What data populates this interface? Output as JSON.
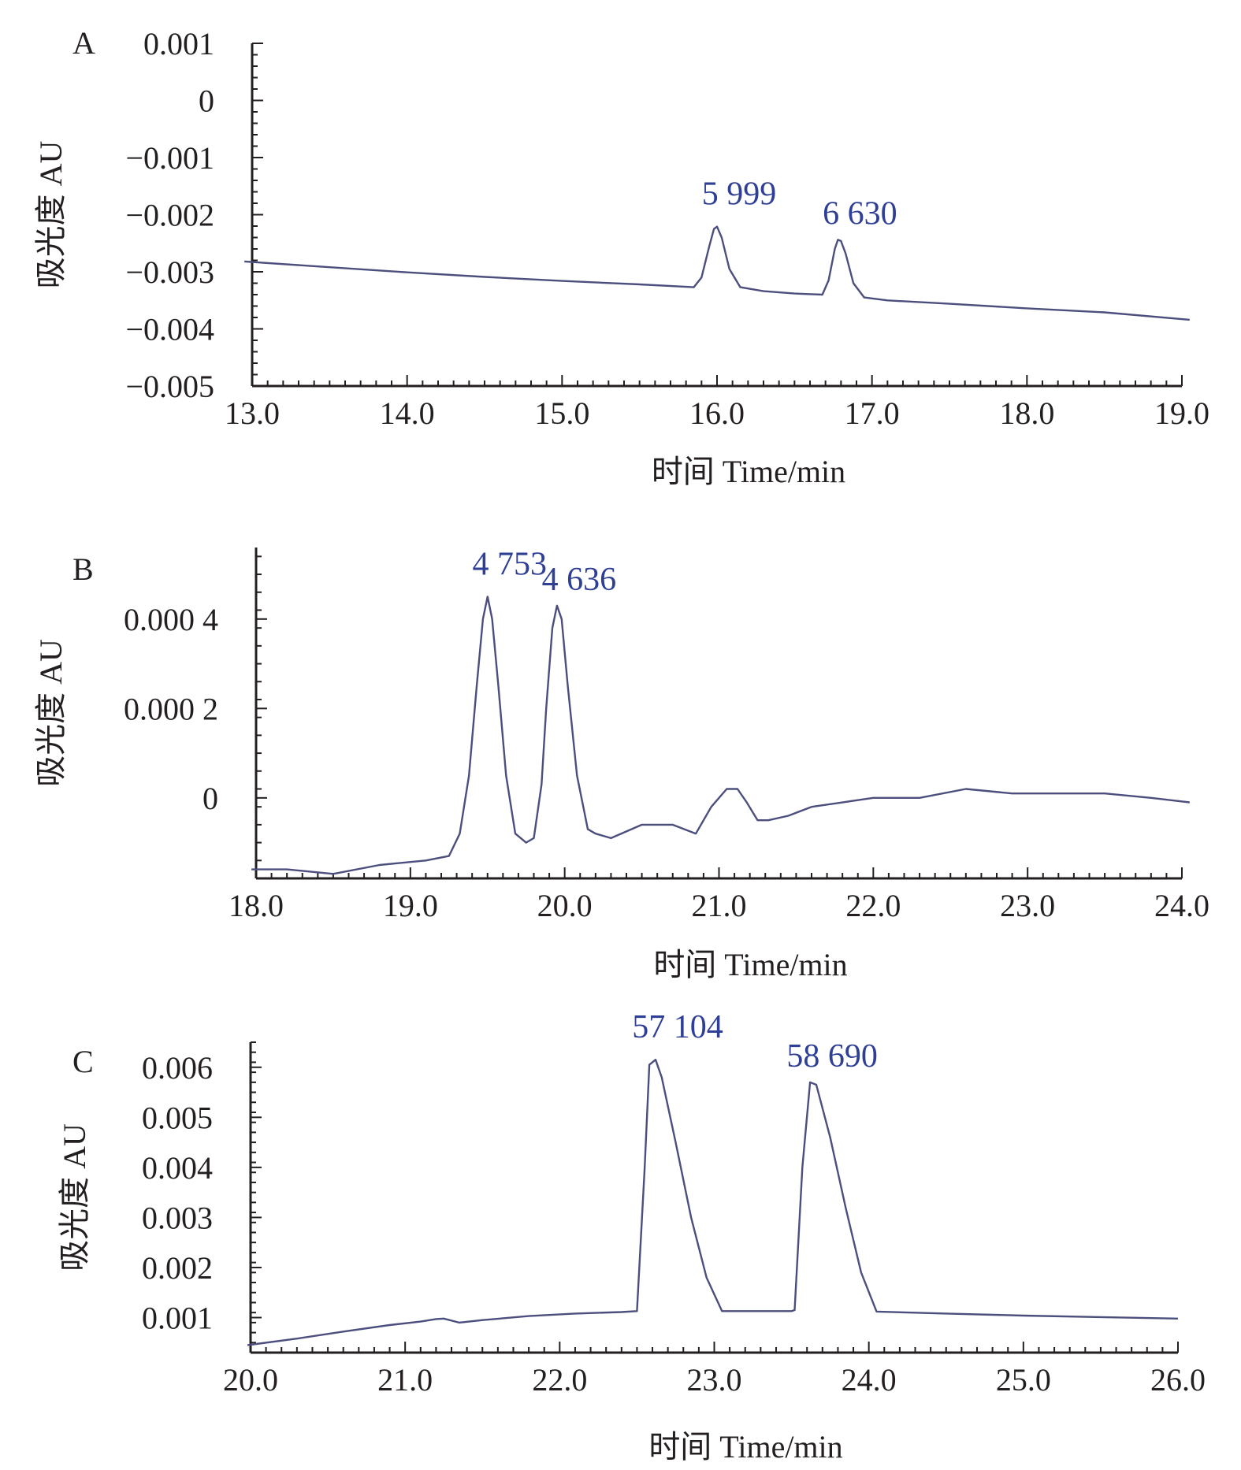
{
  "chart_data": [
    {
      "panel": "A",
      "type": "line",
      "xlabel": "时间 Time/min",
      "ylabel": "吸光度 AU",
      "xlim": [
        13.0,
        19.0
      ],
      "ylim": [
        -0.005,
        0.001
      ],
      "x_ticks": [
        "13.0",
        "14.0",
        "15.0",
        "16.0",
        "17.0",
        "18.0",
        "19.0"
      ],
      "y_ticks": [
        "0.001",
        "0",
        "−0.001",
        "−0.002",
        "−0.003",
        "−0.004",
        "−0.005"
      ],
      "series": [
        {
          "color": "#4c4f7e",
          "x": [
            12.95,
            13.5,
            14.0,
            14.5,
            15.0,
            15.5,
            15.85,
            15.9,
            15.95,
            15.98,
            16.0,
            16.03,
            16.08,
            16.15,
            16.3,
            16.5,
            16.68,
            16.72,
            16.76,
            16.78,
            16.8,
            16.83,
            16.88,
            16.95,
            17.1,
            17.5,
            18.0,
            18.5,
            19.05
          ],
          "y": [
            -0.00282,
            -0.00292,
            -0.00301,
            -0.00309,
            -0.00316,
            -0.00322,
            -0.00327,
            -0.0031,
            -0.00255,
            -0.00225,
            -0.00221,
            -0.0024,
            -0.00295,
            -0.00327,
            -0.00334,
            -0.00338,
            -0.0034,
            -0.00315,
            -0.0026,
            -0.00244,
            -0.00246,
            -0.00268,
            -0.0032,
            -0.00345,
            -0.0035,
            -0.00356,
            -0.00364,
            -0.00371,
            -0.00384
          ]
        }
      ],
      "peak_labels": [
        {
          "x": 16.0,
          "y": -0.00221,
          "text": "5 999"
        },
        {
          "x": 16.78,
          "y": -0.00244,
          "text": "6 630"
        }
      ]
    },
    {
      "panel": "B",
      "type": "line",
      "xlabel": "时间 Time/min",
      "ylabel": "吸光度 AU",
      "xlim": [
        18.0,
        24.0
      ],
      "ylim": [
        -0.00018,
        0.00056
      ],
      "x_ticks": [
        "18.0",
        "19.0",
        "20.0",
        "21.0",
        "22.0",
        "23.0",
        "24.0"
      ],
      "y_ticks": [
        "0.000 4",
        "0.000 2",
        "0"
      ],
      "y_tick_values": [
        0.0004,
        0.0002,
        0
      ],
      "series": [
        {
          "color": "#4c4f7e",
          "x": [
            17.97,
            18.2,
            18.5,
            18.8,
            19.1,
            19.25,
            19.32,
            19.38,
            19.43,
            19.47,
            19.5,
            19.53,
            19.57,
            19.62,
            19.68,
            19.75,
            19.8,
            19.85,
            19.88,
            19.92,
            19.95,
            19.98,
            20.02,
            20.08,
            20.15,
            20.2,
            20.3,
            20.5,
            20.7,
            20.85,
            20.95,
            21.05,
            21.12,
            21.18,
            21.25,
            21.32,
            21.45,
            21.6,
            21.8,
            22.0,
            22.3,
            22.6,
            22.9,
            23.2,
            23.5,
            23.8,
            24.05
          ],
          "y": [
            -0.00016,
            -0.00016,
            -0.00017,
            -0.00015,
            -0.00014,
            -0.00013,
            -8e-05,
            5e-05,
            0.00025,
            0.0004,
            0.00045,
            0.0004,
            0.00025,
            5e-05,
            -8e-05,
            -0.0001,
            -9e-05,
            3e-05,
            0.0002,
            0.00038,
            0.00043,
            0.0004,
            0.00025,
            5e-05,
            -7e-05,
            -8e-05,
            -9e-05,
            -6e-05,
            -6e-05,
            -8e-05,
            -2e-05,
            2e-05,
            2e-05,
            -1e-05,
            -5e-05,
            -5e-05,
            -4e-05,
            -2e-05,
            -1e-05,
            0.0,
            0.0,
            2e-05,
            1e-05,
            1e-05,
            1e-05,
            0.0,
            -1e-05
          ]
        }
      ],
      "peak_labels": [
        {
          "x": 19.5,
          "y": 0.00045,
          "text": "4 753"
        },
        {
          "x": 19.95,
          "y": 0.00043,
          "text": "4 636"
        }
      ]
    },
    {
      "panel": "C",
      "type": "line",
      "xlabel": "时间 Time/min",
      "ylabel": "吸光度 AU",
      "xlim": [
        20.0,
        26.0
      ],
      "ylim": [
        0.0003,
        0.0065
      ],
      "x_ticks": [
        "20.0",
        "21.0",
        "22.0",
        "23.0",
        "24.0",
        "25.0",
        "26.0"
      ],
      "y_ticks": [
        "0.006",
        "0.005",
        "0.004",
        "0.003",
        "0.002",
        "0.001"
      ],
      "y_tick_values": [
        0.006,
        0.005,
        0.004,
        0.003,
        0.002,
        0.001
      ],
      "series": [
        {
          "color": "#4c4f7e",
          "x": [
            19.98,
            20.3,
            20.6,
            20.9,
            21.1,
            21.2,
            21.25,
            21.35,
            21.5,
            21.8,
            22.1,
            22.4,
            22.5,
            22.55,
            22.58,
            22.62,
            22.66,
            22.75,
            22.85,
            22.95,
            23.05,
            23.5,
            23.52,
            23.57,
            23.62,
            23.66,
            23.75,
            23.85,
            23.95,
            24.05,
            24.5,
            25.0,
            25.5,
            26.0
          ],
          "y": [
            0.00045,
            0.00058,
            0.00072,
            0.00085,
            0.00092,
            0.00097,
            0.00098,
            0.0009,
            0.00095,
            0.00103,
            0.00108,
            0.00111,
            0.00113,
            0.004,
            0.00605,
            0.00615,
            0.0058,
            0.0045,
            0.003,
            0.0018,
            0.00113,
            0.00113,
            0.00115,
            0.004,
            0.0057,
            0.00565,
            0.0046,
            0.0032,
            0.0019,
            0.00112,
            0.00108,
            0.00104,
            0.00101,
            0.00098
          ]
        }
      ],
      "peak_labels": [
        {
          "x": 22.62,
          "y": 0.00615,
          "text": "57 104"
        },
        {
          "x": 23.62,
          "y": 0.0057,
          "text": "58 690"
        }
      ]
    }
  ]
}
